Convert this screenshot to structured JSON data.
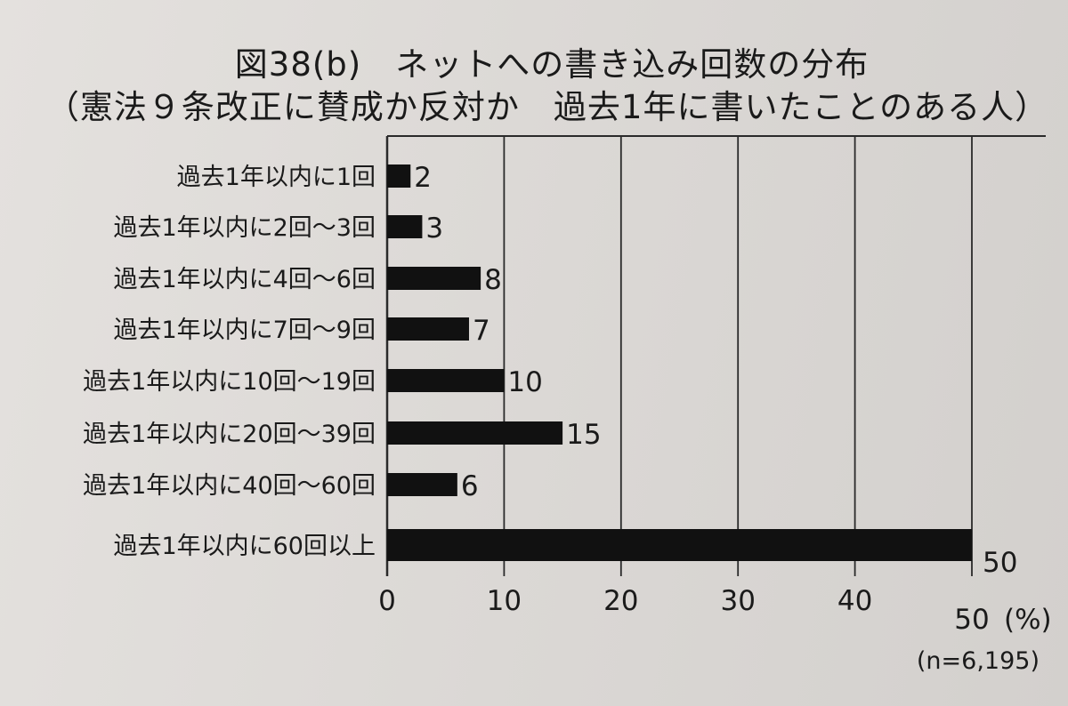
{
  "chart_data": {
    "type": "bar",
    "orientation": "horizontal",
    "title": "図38(b)　ネットへの書き込み回数の分布",
    "subtitle": "（憲法９条改正に賛成か反対か　過去1年に書いたことのある人）",
    "categories": [
      "過去1年以内に1回",
      "過去1年以内に2回～3回",
      "過去1年以内に4回～6回",
      "過去1年以内に7回～9回",
      "過去1年以内に10回～19回",
      "過去1年以内に20回～39回",
      "過去1年以内に40回～60回",
      "過去1年以内に60回以上"
    ],
    "values": [
      2,
      3,
      8,
      7,
      10,
      15,
      6,
      50
    ],
    "xlim": [
      0,
      50
    ],
    "xticks": [
      "0",
      "10",
      "20",
      "30",
      "40",
      "50"
    ],
    "unit": "(%)",
    "note": "(n=6,195)",
    "grid": true,
    "colors": {
      "bar": "#111111",
      "grid": "#2a2a2a"
    }
  }
}
